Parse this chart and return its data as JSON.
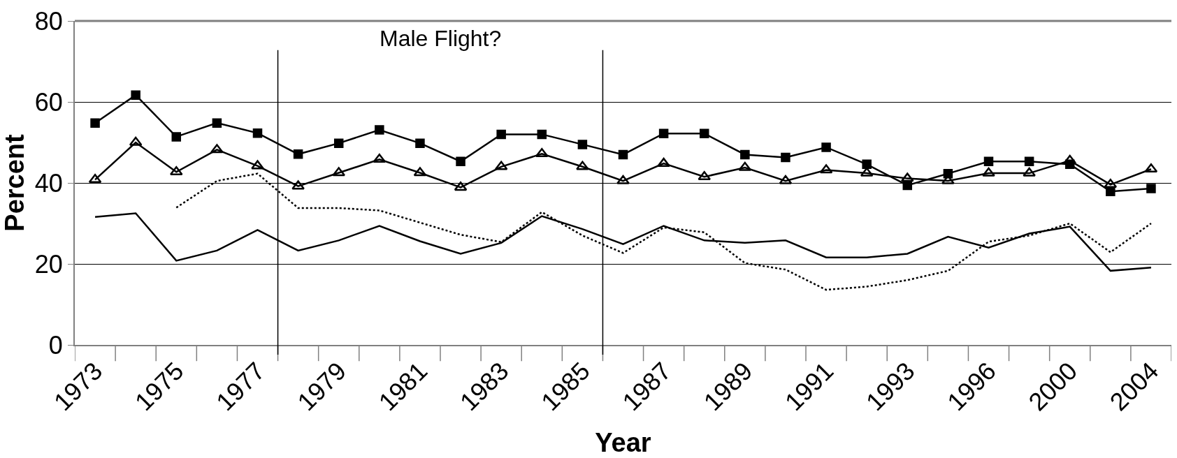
{
  "chart_data": {
    "type": "line",
    "xlabel": "Year",
    "ylabel": "Percent",
    "categories": [
      "1973",
      null,
      "1975",
      null,
      "1977",
      null,
      "1979",
      null,
      "1981",
      null,
      "1983",
      null,
      "1985",
      null,
      "1987",
      null,
      "1989",
      null,
      "1991",
      null,
      "1993",
      null,
      "1996",
      null,
      "2000",
      null,
      "2004"
    ],
    "series": [
      {
        "color": "#000000",
        "marker": "square",
        "line_style": "solid",
        "values": [
          54.8,
          61.7,
          51.4,
          54.8,
          52.3,
          47.1,
          49.8,
          53.1,
          49.8,
          45.3,
          52,
          52,
          49.5,
          47,
          52.2,
          52.2,
          47,
          46.3,
          48.8,
          44.6,
          39.4,
          42.3,
          45.3,
          45.3,
          44.6,
          37.9,
          38.6
        ]
      },
      {
        "color": "#000000",
        "marker": "triangle",
        "line_style": "solid",
        "values": [
          40.8,
          50,
          42.7,
          48.2,
          44.2,
          39.2,
          42.5,
          45.8,
          42.5,
          38.9,
          44,
          47.2,
          44,
          40.5,
          44.8,
          41.5,
          43.8,
          40.5,
          43.2,
          42.4,
          41.1,
          40.5,
          42.4,
          42.4,
          45.5,
          39.6,
          43.4
        ]
      },
      {
        "color": "#000000",
        "marker": "none",
        "line_style": "solid",
        "values": [
          31.6,
          32.5,
          20.8,
          23.3,
          28.4,
          23.3,
          25.8,
          29.4,
          25.6,
          22.5,
          25.2,
          31.8,
          28.6,
          24.9,
          29.4,
          25.8,
          25.2,
          25.8,
          21.6,
          21.6,
          22.5,
          26.7,
          24,
          27.5,
          29.2,
          18.3,
          19.1
        ]
      },
      {
        "color": "#000000",
        "marker": "none",
        "line_style": "dotted",
        "values": [
          null,
          null,
          33.9,
          40.5,
          42.3,
          33.8,
          33.8,
          33.2,
          30.2,
          27.2,
          25.4,
          32.8,
          27,
          22.7,
          29,
          27.8,
          20.2,
          18.6,
          13.6,
          14.4,
          16,
          18.3,
          25.5,
          27,
          30,
          22.9,
          30
        ]
      }
    ],
    "ylim": [
      0,
      80
    ],
    "yticks": [
      0,
      20,
      40,
      60,
      80
    ],
    "grid": "y",
    "annotations": [
      "Male Flight?"
    ]
  }
}
